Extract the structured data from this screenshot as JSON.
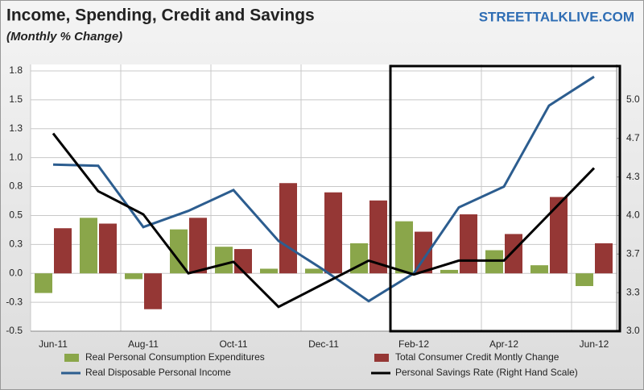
{
  "chart_data": {
    "type": "bar-line",
    "title": "Income, Spending, Credit and Savings",
    "subtitle": "(Monthly % Change)",
    "source": "STREETTALKLIVE.COM",
    "categories": [
      "Jun-11",
      null,
      "Aug-11",
      null,
      "Oct-11",
      null,
      "Dec-11",
      null,
      "Feb-12",
      null,
      "Apr-12",
      null,
      "Jun-12"
    ],
    "ylim": [
      -0.5,
      1.75
    ],
    "yticks": [
      -0.5,
      {
        "value": -0.25,
        "label": "-0.3"
      },
      {
        "value": 0,
        "label": "0.0"
      },
      {
        "value": 0.25,
        "label": "0.3"
      },
      0.5,
      {
        "value": 0.75,
        "label": "0.8"
      },
      {
        "value": 1,
        "label": "1.0"
      },
      {
        "value": 1.25,
        "label": "1.3"
      },
      1.5,
      {
        "value": 1.75,
        "label": "1.8"
      }
    ],
    "y2lim": [
      3.0,
      5.25
    ],
    "y2ticks": [
      {
        "value": 3,
        "label": "3.0"
      },
      {
        "value": 3.333,
        "label": "3.3"
      },
      {
        "value": 3.667,
        "label": "3.7"
      },
      {
        "value": 4,
        "label": "4.0"
      },
      {
        "value": 4.333,
        "label": "4.3"
      },
      {
        "value": 4.667,
        "label": "4.7"
      },
      {
        "value": 5,
        "label": "5.0"
      }
    ],
    "grid": true,
    "series": [
      {
        "name": "Real Personal Consumption Expenditures",
        "kind": "bar",
        "color": "#8aa64a",
        "values": [
          -0.17,
          0.48,
          -0.05,
          0.38,
          0.23,
          0.04,
          0.04,
          0.26,
          0.45,
          0.03,
          0.2,
          0.07,
          -0.11
        ]
      },
      {
        "name": "Total Consumer Credit Montly Change",
        "kind": "bar",
        "color": "#953735",
        "values": [
          0.39,
          0.43,
          -0.31,
          0.48,
          0.21,
          0.78,
          0.7,
          0.63,
          0.36,
          0.51,
          0.34,
          0.66,
          0.26
        ]
      },
      {
        "name": "Real Disposable Personal Income",
        "kind": "line",
        "color": "#2c5d8f",
        "values": [
          0.94,
          0.93,
          0.4,
          0.54,
          0.72,
          0.28,
          0.03,
          -0.24,
          0.0,
          0.57,
          0.75,
          1.45,
          1.7
        ]
      },
      {
        "name": "Personal Savings Rate (Right Hand Scale)",
        "kind": "line",
        "axis": "y2",
        "color": "#000000",
        "values": [
          4.71,
          4.21,
          4.01,
          3.5,
          3.6,
          3.21,
          3.41,
          3.61,
          3.49,
          3.61,
          3.61,
          4.01,
          4.41
        ]
      }
    ]
  }
}
